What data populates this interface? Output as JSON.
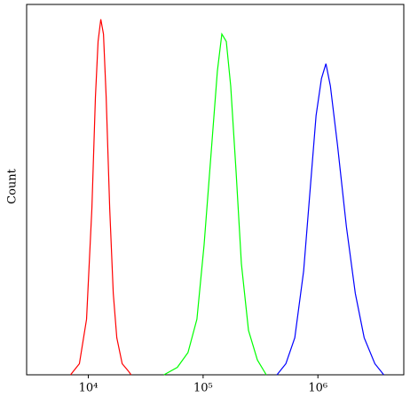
{
  "chart_data": {
    "type": "line",
    "y_label": "Count",
    "xscale": "log",
    "xlim": [
      2900,
      5600000
    ],
    "ylim": [
      0,
      100
    ],
    "xticks": [
      {
        "value": 10000,
        "label": "10⁴"
      },
      {
        "value": 100000,
        "label": "10⁵"
      },
      {
        "value": 1000000,
        "label": "10⁶"
      }
    ],
    "series": [
      {
        "color": "#ff0000",
        "x": [
          7000,
          8360,
          9650,
          10740,
          11530,
          12160,
          12840,
          13550,
          14300,
          15350,
          16490,
          17700,
          19720,
          22340,
          23560
        ],
        "values": [
          0,
          3,
          15,
          45,
          75,
          90,
          96,
          92,
          75,
          45,
          22,
          10,
          3,
          1,
          0
        ]
      },
      {
        "color": "#00ff00",
        "x": [
          45600,
          59600,
          73800,
          88300,
          101900,
          117500,
          133100,
          145600,
          159200,
          173900,
          193600,
          215500,
          248500,
          297000,
          355000
        ],
        "values": [
          0,
          2,
          6,
          15,
          35,
          60,
          82,
          92,
          90,
          78,
          55,
          30,
          12,
          4,
          0
        ]
      },
      {
        "color": "#0000ff",
        "x": [
          440000,
          526000,
          629000,
          751000,
          866000,
          964000,
          1074000,
          1175000,
          1284000,
          1482000,
          1771000,
          2117000,
          2530000,
          3134000,
          3748000
        ],
        "values": [
          0,
          3,
          10,
          28,
          52,
          70,
          80,
          84,
          78,
          62,
          40,
          22,
          10,
          3,
          0
        ]
      }
    ]
  }
}
